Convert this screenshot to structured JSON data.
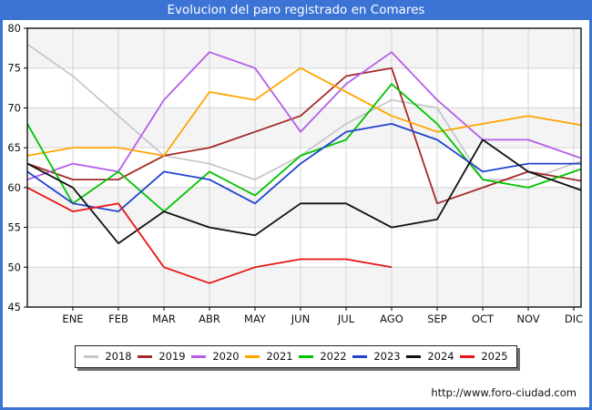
{
  "window": {
    "title": "Evolucion del paro registrado en Comares",
    "footer_url": "http://www.foro-ciudad.com"
  },
  "colors": {
    "frame_blue": "#3b74d4",
    "band_gray": "#f4f4f4",
    "grid": "#d3d3d3",
    "plot_border": "#000000",
    "text": "#111111"
  },
  "chart_data": {
    "type": "line",
    "title": "Evolucion del paro registrado en Comares",
    "x_categories": [
      "ENE",
      "FEB",
      "MAR",
      "ABR",
      "MAY",
      "JUN",
      "JUL",
      "AGO",
      "SEP",
      "OCT",
      "NOV",
      "DIC"
    ],
    "ylabel": "",
    "xlabel": "",
    "ylim": [
      45,
      80
    ],
    "ytick_step": 5,
    "grid": true,
    "legend_position": "bottom",
    "note": "Each series starts with an unlabeled point at the plot's left edge before ENE; 2025 ends at AGO.",
    "series": [
      {
        "name": "2018",
        "color": "#c8c8c8",
        "start": 78,
        "values": [
          74,
          69,
          64,
          63,
          61,
          64,
          68,
          71,
          70,
          61,
          61,
          63
        ]
      },
      {
        "name": "2019",
        "color": "#a52a2a",
        "start": 63,
        "values": [
          61,
          61,
          64,
          65,
          67,
          69,
          74,
          75,
          58,
          60,
          62,
          61
        ]
      },
      {
        "name": "2020",
        "color": "#b45fe8",
        "start": 61,
        "values": [
          63,
          62,
          71,
          77,
          75,
          67,
          73,
          77,
          71,
          66,
          66,
          64
        ]
      },
      {
        "name": "2021",
        "color": "#ffa500",
        "start": 64,
        "values": [
          65,
          65,
          64,
          72,
          71,
          75,
          72,
          69,
          67,
          68,
          69,
          68
        ]
      },
      {
        "name": "2022",
        "color": "#00c400",
        "start": 68,
        "values": [
          58,
          62,
          57,
          62,
          59,
          64,
          66,
          73,
          68,
          61,
          60,
          62
        ]
      },
      {
        "name": "2023",
        "color": "#2244cc",
        "start": 62,
        "values": [
          58,
          57,
          62,
          61,
          58,
          63,
          67,
          68,
          66,
          62,
          63,
          63
        ]
      },
      {
        "name": "2024",
        "color": "#111111",
        "start": 63,
        "values": [
          60,
          53,
          57,
          55,
          54,
          58,
          58,
          55,
          56,
          66,
          62,
          60
        ]
      },
      {
        "name": "2025",
        "color": "#e81515",
        "start": 60,
        "values": [
          57,
          58,
          50,
          48,
          50,
          51,
          51,
          50,
          null,
          null,
          null,
          null
        ]
      }
    ]
  }
}
